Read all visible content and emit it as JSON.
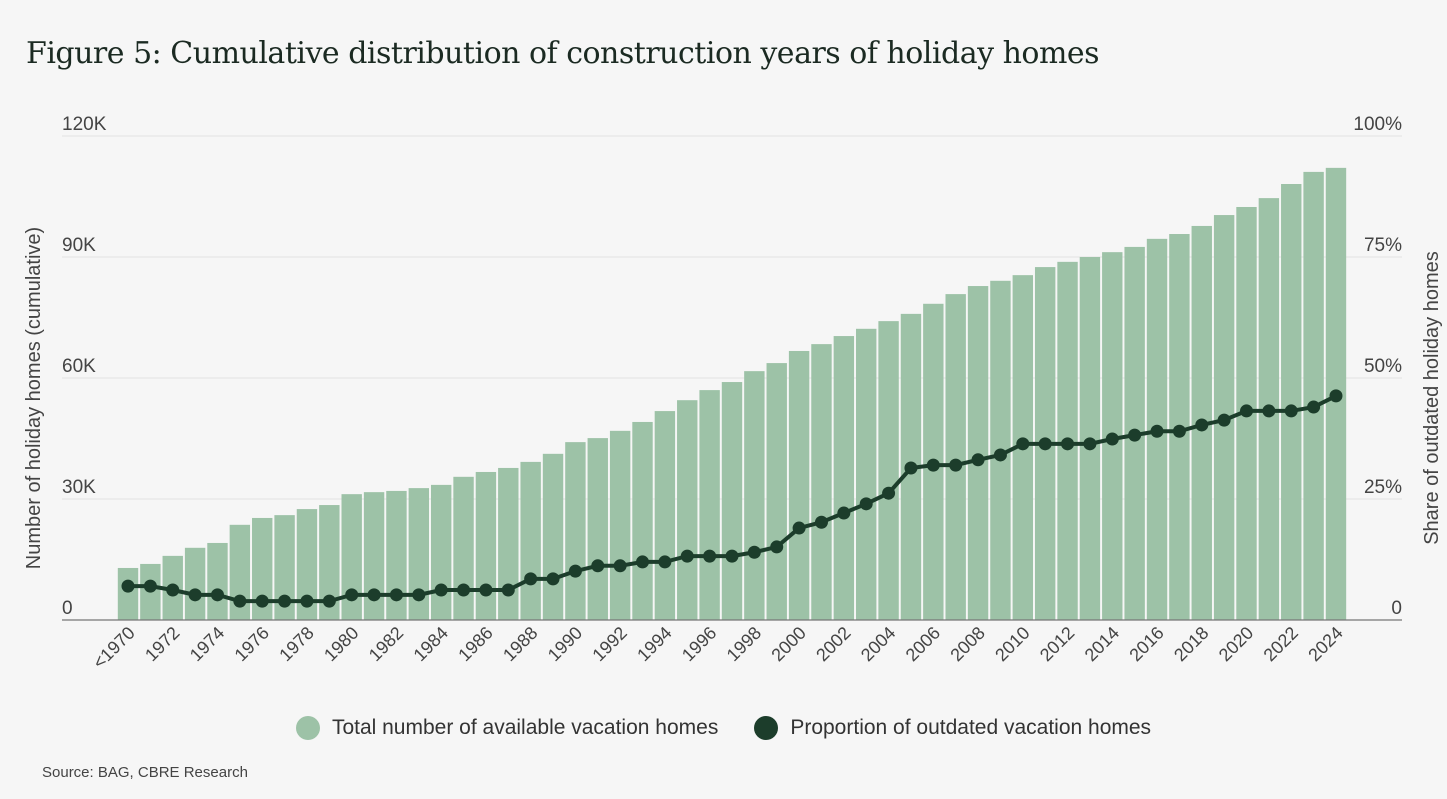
{
  "title": "Figure 5: Cumulative distribution of construction years of holiday homes",
  "source": "Source: BAG, CBRE Research",
  "colors": {
    "bars": "#9dc2a7",
    "line": "#1c3d2b",
    "grid": "#e2e2e2",
    "text": "#444444"
  },
  "chart_data": {
    "type": "bar+line",
    "title": "Figure 5: Cumulative distribution of construction years of holiday homes",
    "categories": [
      "<1970",
      "1971",
      "1972",
      "1973",
      "1974",
      "1975",
      "1976",
      "1977",
      "1978",
      "1979",
      "1980",
      "1981",
      "1982",
      "1983",
      "1984",
      "1985",
      "1986",
      "1987",
      "1988",
      "1989",
      "1990",
      "1991",
      "1992",
      "1993",
      "1994",
      "1995",
      "1996",
      "1997",
      "1998",
      "1999",
      "2000",
      "2001",
      "2002",
      "2003",
      "2004",
      "2005",
      "2006",
      "2007",
      "2008",
      "2009",
      "2010",
      "2011",
      "2012",
      "2013",
      "2014",
      "2015",
      "2016",
      "2017",
      "2018",
      "2019",
      "2020",
      "2021",
      "2022",
      "2023",
      "2024"
    ],
    "x_tick_labels": [
      "<1970",
      "1972",
      "1974",
      "1976",
      "1978",
      "1980",
      "1982",
      "1984",
      "1986",
      "1988",
      "1990",
      "1992",
      "1994",
      "1996",
      "1998",
      "2000",
      "2002",
      "2004",
      "2006",
      "2008",
      "2010",
      "2012",
      "2014",
      "2016",
      "2018",
      "2020",
      "2022",
      "2024"
    ],
    "ylabel": "Number of holiday homes (cumulative)",
    "y2label": "Share of outdated holiday homes",
    "ylim": [
      0,
      120000
    ],
    "y2lim": [
      0,
      100
    ],
    "yticks": [
      "0",
      "30K",
      "60K",
      "90K",
      "120K"
    ],
    "y2ticks": [
      "0",
      "25%",
      "50%",
      "75%",
      "100%"
    ],
    "grid": true,
    "legend_placement": "bottom",
    "series": [
      {
        "name": "Total number of available vacation homes",
        "type": "bar",
        "axis": "left",
        "values": [
          12900,
          13900,
          15900,
          17900,
          19100,
          23600,
          25300,
          26000,
          27500,
          28500,
          31200,
          31700,
          32000,
          32700,
          33500,
          35500,
          36700,
          37700,
          39200,
          41200,
          44100,
          45100,
          46900,
          49100,
          51800,
          54500,
          57000,
          59000,
          61700,
          63700,
          66700,
          68400,
          70400,
          72200,
          74100,
          75900,
          78400,
          80800,
          82800,
          84100,
          85500,
          87500,
          88800,
          90000,
          91200,
          92500,
          94500,
          95700,
          97700,
          100400,
          102400,
          104600,
          108100,
          111100,
          112100
        ]
      },
      {
        "name": "Proportion of outdated vacation homes",
        "type": "line",
        "axis": "right",
        "values": [
          7.0,
          7.0,
          6.2,
          5.2,
          5.2,
          3.9,
          3.9,
          3.9,
          3.9,
          3.9,
          5.2,
          5.2,
          5.2,
          5.2,
          6.2,
          6.2,
          6.2,
          6.2,
          8.5,
          8.5,
          10.1,
          11.2,
          11.2,
          12.0,
          12.0,
          13.2,
          13.2,
          13.2,
          14.0,
          15.1,
          19.0,
          20.2,
          22.1,
          24.0,
          26.2,
          31.4,
          32.0,
          32.0,
          33.1,
          34.1,
          36.4,
          36.4,
          36.4,
          36.4,
          37.4,
          38.2,
          39.0,
          39.0,
          40.3,
          41.3,
          43.2,
          43.2,
          43.2,
          44.0,
          46.3
        ]
      }
    ]
  }
}
